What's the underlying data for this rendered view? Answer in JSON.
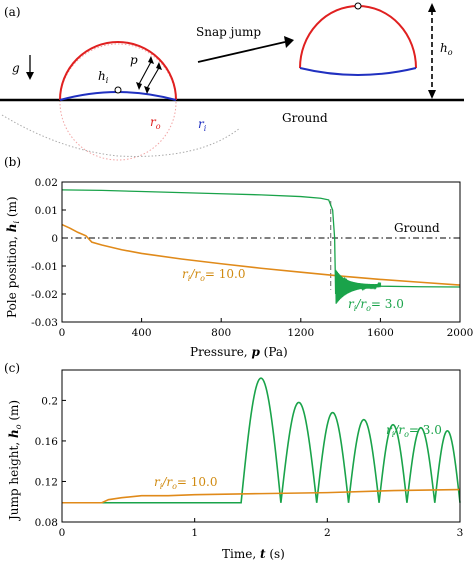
{
  "panel_a": {
    "label": "(a)",
    "snap_jump": "Snap jump",
    "ground": "Ground",
    "g": "g",
    "h_i": "h",
    "h_i_sub": "i",
    "p": "p",
    "r_o": "r",
    "r_o_sub": "o",
    "r_i": "r",
    "r_i_sub": "i",
    "h_o": "h",
    "h_o_sub": "o"
  },
  "chart_data": [
    {
      "type": "line",
      "panel_label": "(b)",
      "xlabel": "Pressure,",
      "xlabel_var": "p",
      "xlabel_unit": "(Pa)",
      "ylabel": "Pole position,",
      "ylabel_var": "h",
      "ylabel_sub": "i",
      "ylabel_unit": "(m)",
      "xlim": [
        0,
        2000
      ],
      "ylim": [
        -0.03,
        0.02
      ],
      "xticks": [
        "0",
        "400",
        "800",
        "1200",
        "1600",
        "2000"
      ],
      "yticks": [
        "0.02",
        "0.01",
        "0",
        "-0.01",
        "-0.02",
        "-0.03"
      ],
      "reference_line": {
        "name": "Ground",
        "y": 0
      },
      "snap_marker_x": 1350,
      "series": [
        {
          "name": "r_i/r_o = 3.0",
          "label_main": "r",
          "label_sub1": "i",
          "label_mid": "/r",
          "label_sub2": "o",
          "label_tail": "= 3.0",
          "color": "#1aa34a",
          "points": [
            [
              0,
              0.0172
            ],
            [
              200,
              0.017
            ],
            [
              400,
              0.0166
            ],
            [
              600,
              0.0162
            ],
            [
              800,
              0.0158
            ],
            [
              1000,
              0.0154
            ],
            [
              1200,
              0.0148
            ],
            [
              1300,
              0.0142
            ],
            [
              1340,
              0.0136
            ],
            [
              1360,
              0.01
            ],
            [
              1370,
              0.0
            ],
            [
              1375,
              -0.02
            ]
          ],
          "oscillation": {
            "x_start": 1375,
            "x_end": 1600,
            "center_start": -0.0175,
            "center_end": -0.017,
            "amp_start": 0.006,
            "amp_end": 0.0004
          },
          "tail": [
            [
              1600,
              -0.0172
            ],
            [
              1800,
              -0.0174
            ],
            [
              2000,
              -0.0175
            ]
          ]
        },
        {
          "name": "r_i/r_o = 10.0",
          "label_main": "r",
          "label_sub1": "i",
          "label_mid": "/r",
          "label_sub2": "o",
          "label_tail": "= 10.0",
          "color": "#e08a1a",
          "points": [
            [
              0,
              0.0048
            ],
            [
              40,
              0.0035
            ],
            [
              80,
              0.002
            ],
            [
              120,
              0.0008
            ],
            [
              150,
              -0.0015
            ],
            [
              200,
              -0.0025
            ],
            [
              300,
              -0.0042
            ],
            [
              400,
              -0.0055
            ],
            [
              600,
              -0.0075
            ],
            [
              800,
              -0.0092
            ],
            [
              1000,
              -0.0108
            ],
            [
              1200,
              -0.0122
            ],
            [
              1400,
              -0.0136
            ],
            [
              1600,
              -0.0148
            ],
            [
              1800,
              -0.0158
            ],
            [
              2000,
              -0.0168
            ]
          ]
        }
      ]
    },
    {
      "type": "line",
      "panel_label": "(c)",
      "xlabel": "Time,",
      "xlabel_var": "t",
      "xlabel_unit": "(s)",
      "ylabel": "Jump height,",
      "ylabel_var": "h",
      "ylabel_sub": "o",
      "ylabel_unit": "(m)",
      "xlim": [
        0,
        3
      ],
      "ylim": [
        0.08,
        0.23
      ],
      "xticks": [
        "0",
        "1",
        "2",
        "3"
      ],
      "yticks": [
        "0.2",
        "0.16",
        "0.12",
        "0.08"
      ],
      "series": [
        {
          "name": "r_i/r_o = 3.0",
          "label_main": "r",
          "label_sub1": "i",
          "label_mid": "/r",
          "label_sub2": "o",
          "label_tail": "= 3.0",
          "color": "#1aa34a",
          "baseline": 0.099,
          "jump_time": 1.35,
          "bounces": [
            [
              1.35,
              1.65,
              0.222
            ],
            [
              1.65,
              1.92,
              0.198
            ],
            [
              1.92,
              2.16,
              0.188
            ],
            [
              2.16,
              2.39,
              0.181
            ],
            [
              2.39,
              2.6,
              0.176
            ],
            [
              2.6,
              2.81,
              0.173
            ],
            [
              2.81,
              3.0,
              0.17
            ]
          ]
        },
        {
          "name": "r_i/r_o = 10.0",
          "label_main": "r",
          "label_sub1": "i",
          "label_mid": "/r",
          "label_sub2": "o",
          "label_tail": "= 10.0",
          "color": "#e08a1a",
          "points": [
            [
              0,
              0.099
            ],
            [
              0.3,
              0.099
            ],
            [
              0.35,
              0.102
            ],
            [
              0.45,
              0.104
            ],
            [
              0.6,
              0.106
            ],
            [
              0.8,
              0.106
            ],
            [
              1.0,
              0.107
            ],
            [
              1.5,
              0.108
            ],
            [
              2.0,
              0.109
            ],
            [
              2.5,
              0.111
            ],
            [
              3.0,
              0.112
            ]
          ]
        }
      ]
    }
  ]
}
